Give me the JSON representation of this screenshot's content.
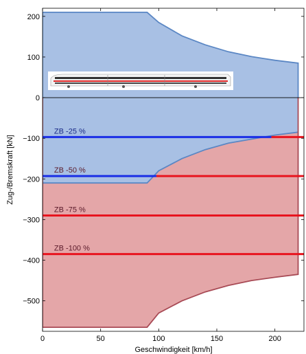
{
  "chart_data": {
    "type": "area",
    "xlabel": "Geschwindigkeit [km/h]",
    "ylabel": "Zug-/Bremskraft [kN]",
    "xlim": [
      0,
      225
    ],
    "ylim": [
      -575,
      220
    ],
    "xticks": [
      0,
      50,
      100,
      150,
      200
    ],
    "yticks": [
      200,
      100,
      0,
      -100,
      -200,
      -300,
      -400,
      -500
    ],
    "grid": false,
    "colors": {
      "traction_fill": "#a8c0e4",
      "traction_edge": "#5b87c4",
      "brake_fill": "#e4a6a8",
      "brake_edge": "#a84a55",
      "blue_line": "#1a2ee6",
      "red_line": "#e8141e"
    },
    "traction": {
      "x": [
        0,
        90,
        100,
        120,
        140,
        160,
        180,
        200,
        220
      ],
      "y": [
        210,
        210,
        185,
        152,
        130,
        113,
        101,
        92,
        85
      ]
    },
    "electric_brake": {
      "x": [
        0,
        90,
        100,
        120,
        140,
        160,
        180,
        200,
        220
      ],
      "y": [
        -210,
        -210,
        -180,
        -150,
        -128,
        -112,
        -102,
        -92,
        -85
      ]
    },
    "total_brake": {
      "x": [
        0,
        90,
        100,
        120,
        140,
        160,
        180,
        200,
        220
      ],
      "y": [
        -565,
        -565,
        -530,
        -500,
        -478,
        -462,
        -450,
        -442,
        -435
      ]
    },
    "series": [
      {
        "name": "ZB -25 %",
        "y": -97,
        "blue_until": 197,
        "red_from": 197
      },
      {
        "name": "ZB -50 %",
        "y": -193,
        "blue_until": 98,
        "red_from": 98
      },
      {
        "name": "ZB -75 %",
        "y": -290,
        "blue_until": 0,
        "red_from": 0
      },
      {
        "name": "ZB -100 %",
        "y": -385,
        "blue_until": 0,
        "red_from": 0
      }
    ]
  }
}
